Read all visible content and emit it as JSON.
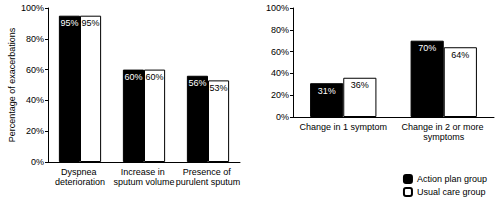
{
  "chart_data": [
    {
      "type": "bar",
      "y_label": "Percentage of exacerbations",
      "categories": [
        "Dyspnea deterioration",
        "Increase in sputum volume",
        "Presence of purulent sputum"
      ],
      "series": [
        {
          "name": "Action plan group",
          "color": "#000000",
          "values": [
            95,
            60,
            56
          ],
          "value_labels": [
            "95%",
            "60%",
            "56%"
          ]
        },
        {
          "name": "Usual care group",
          "color": "#ffffff",
          "values": [
            95,
            60,
            53
          ],
          "value_labels": [
            "95%",
            "60%",
            "53%"
          ]
        }
      ],
      "ylim": [
        0,
        100
      ],
      "yticks": [
        {
          "value": 0,
          "label": "0%"
        },
        {
          "value": 20,
          "label": "20%"
        },
        {
          "value": 40,
          "label": "40%"
        },
        {
          "value": 60,
          "label": "60%"
        },
        {
          "value": 80,
          "label": "80%"
        },
        {
          "value": 100,
          "label": "100%"
        }
      ],
      "grid": false,
      "data_labels": true
    },
    {
      "type": "bar",
      "categories": [
        "Change in 1 symptom",
        "Change in 2 or more symptoms"
      ],
      "series": [
        {
          "name": "Action plan group",
          "color": "#000000",
          "values": [
            31,
            70
          ],
          "value_labels": [
            "31%",
            "70%"
          ]
        },
        {
          "name": "Usual care group",
          "color": "#ffffff",
          "values": [
            36,
            64
          ],
          "value_labels": [
            "36%",
            "64%"
          ]
        }
      ],
      "ylim": [
        0,
        100
      ],
      "yticks": [
        {
          "value": 0,
          "label": "0%"
        },
        {
          "value": 20,
          "label": "20%"
        },
        {
          "value": 40,
          "label": "40%"
        },
        {
          "value": 60,
          "label": "60%"
        },
        {
          "value": 80,
          "label": "80%"
        },
        {
          "value": 100,
          "label": "100%"
        }
      ],
      "grid": false,
      "data_labels": true,
      "legend": "bottom"
    }
  ]
}
